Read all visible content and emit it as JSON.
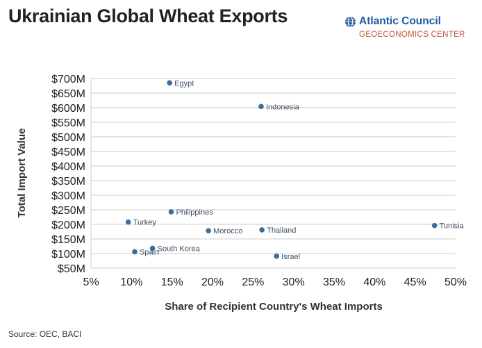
{
  "title": "Ukrainian Global Wheat Exports",
  "logo": {
    "name": "Atlantic Council",
    "subtitle": "GEOECONOMICS CENTER"
  },
  "source": "Source: OEC, BACI",
  "colors": {
    "point": "#3b6d9a",
    "grid": "#cccccc",
    "logo_blue": "#1f5c9e",
    "logo_red": "#c2553b"
  },
  "chart_data": {
    "type": "scatter",
    "title": "Ukrainian Global Wheat Exports",
    "xlabel": "Share of Recipient Country's Wheat Imports",
    "ylabel": "Total Import Value",
    "xlim": [
      5,
      50
    ],
    "ylim": [
      50,
      700
    ],
    "x_ticks": [
      "5%",
      "10%",
      "15%",
      "20%",
      "25%",
      "30%",
      "35%",
      "40%",
      "45%",
      "50%"
    ],
    "y_ticks": [
      "$50M",
      "$100M",
      "$150M",
      "$200M",
      "$250M",
      "$300M",
      "$350M",
      "$400M",
      "$450M",
      "$500M",
      "$550M",
      "$600M",
      "$650M",
      "$700M"
    ],
    "grid": "horizontal",
    "points": [
      {
        "label": "Egypt",
        "x": 14.7,
        "y": 685
      },
      {
        "label": "Indonesia",
        "x": 26.0,
        "y": 604
      },
      {
        "label": "Philippines",
        "x": 14.9,
        "y": 243
      },
      {
        "label": "Turkey",
        "x": 9.6,
        "y": 208
      },
      {
        "label": "Morocco",
        "x": 19.5,
        "y": 178
      },
      {
        "label": "Thailand",
        "x": 26.1,
        "y": 181
      },
      {
        "label": "Tunisia",
        "x": 47.4,
        "y": 196
      },
      {
        "label": "South Korea",
        "x": 12.6,
        "y": 118
      },
      {
        "label": "Spain",
        "x": 10.4,
        "y": 106
      },
      {
        "label": "Israel",
        "x": 27.9,
        "y": 91
      }
    ]
  }
}
